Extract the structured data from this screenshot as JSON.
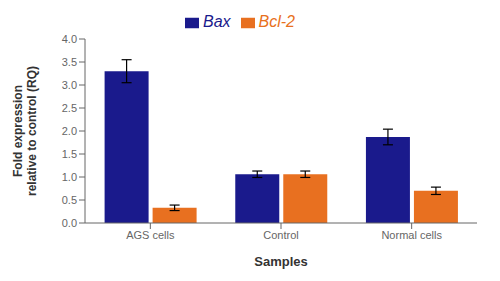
{
  "chart_data": {
    "type": "bar",
    "categories": [
      "AGS cells",
      "Control",
      "Normal cells"
    ],
    "series": [
      {
        "name": "Bax",
        "color": "#1a1a8c",
        "values": [
          3.3,
          1.06,
          1.87
        ],
        "errors": [
          0.25,
          0.07,
          0.17
        ]
      },
      {
        "name": "Bcl-2",
        "color": "#e87020",
        "values": [
          0.33,
          1.06,
          0.7
        ],
        "errors": [
          0.06,
          0.07,
          0.08
        ]
      }
    ],
    "ylabel": "Fold expression\nrelative to control (RQ)",
    "xlabel": "Samples",
    "ylim": [
      0,
      4.0
    ],
    "yticks": [
      {
        "value": 0.0,
        "label": "0.0"
      },
      {
        "value": 0.5,
        "label": "0.5"
      },
      {
        "value": 1.0,
        "label": "1.0"
      },
      {
        "value": 1.5,
        "label": "1.5"
      },
      {
        "value": 2.0,
        "label": "2.0"
      },
      {
        "value": 2.5,
        "label": "2.5"
      },
      {
        "value": 3.0,
        "label": "3.0"
      },
      {
        "value": 3.5,
        "label": "3.5"
      },
      {
        "value": 4.0,
        "label": "4.0"
      }
    ],
    "legend": "top",
    "grid": false
  }
}
